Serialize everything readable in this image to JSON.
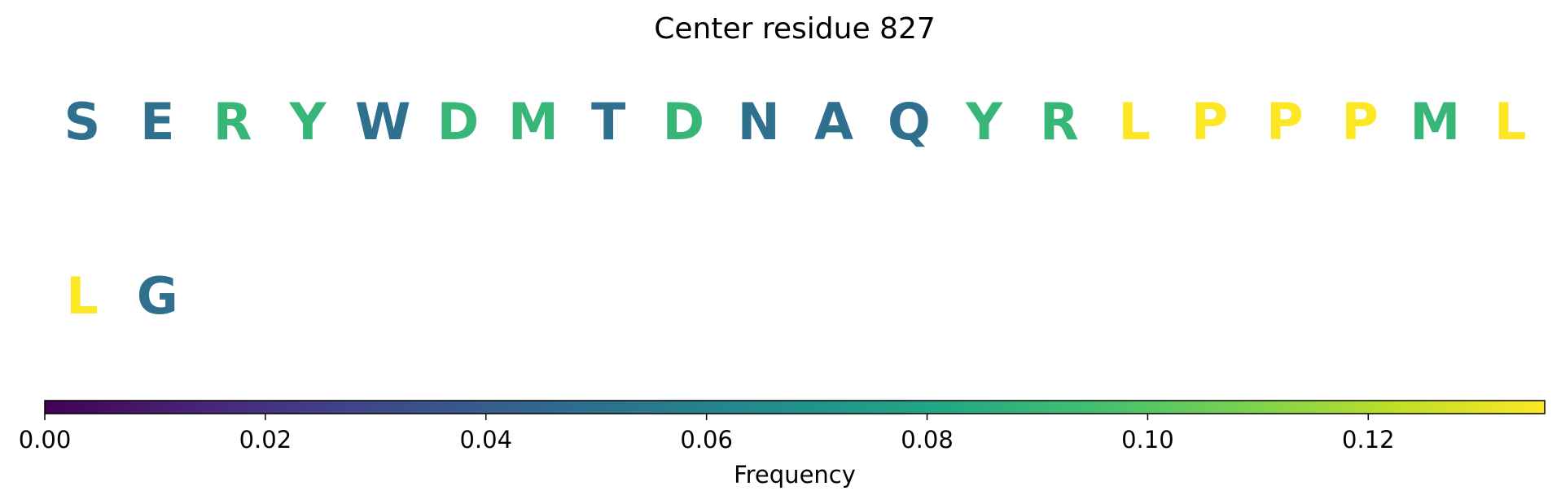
{
  "chart_data": {
    "type": "sequence-logo-colormap",
    "title": "Center residue 827",
    "colormap": "viridis",
    "residues": [
      {
        "letter": "S",
        "frequency": 0.05
      },
      {
        "letter": "E",
        "frequency": 0.05
      },
      {
        "letter": "R",
        "frequency": 0.09
      },
      {
        "letter": "Y",
        "frequency": 0.09
      },
      {
        "letter": "W",
        "frequency": 0.05
      },
      {
        "letter": "D",
        "frequency": 0.09
      },
      {
        "letter": "M",
        "frequency": 0.09
      },
      {
        "letter": "T",
        "frequency": 0.05
      },
      {
        "letter": "D",
        "frequency": 0.09
      },
      {
        "letter": "N",
        "frequency": 0.05
      },
      {
        "letter": "A",
        "frequency": 0.05
      },
      {
        "letter": "Q",
        "frequency": 0.05
      },
      {
        "letter": "Y",
        "frequency": 0.09
      },
      {
        "letter": "R",
        "frequency": 0.09
      },
      {
        "letter": "L",
        "frequency": 0.136
      },
      {
        "letter": "P",
        "frequency": 0.136
      },
      {
        "letter": "P",
        "frequency": 0.136
      },
      {
        "letter": "P",
        "frequency": 0.136
      },
      {
        "letter": "M",
        "frequency": 0.09
      },
      {
        "letter": "L",
        "frequency": 0.136
      },
      {
        "letter": "L",
        "frequency": 0.136
      },
      {
        "letter": "G",
        "frequency": 0.05
      }
    ],
    "colorbar": {
      "label": "Frequency",
      "range": [
        0,
        0.136
      ],
      "ticks": [
        0.0,
        0.02,
        0.04,
        0.06,
        0.08,
        0.1,
        0.12
      ],
      "tick_labels": [
        "0.00",
        "0.02",
        "0.04",
        "0.06",
        "0.08",
        "0.10",
        "0.12"
      ]
    }
  }
}
